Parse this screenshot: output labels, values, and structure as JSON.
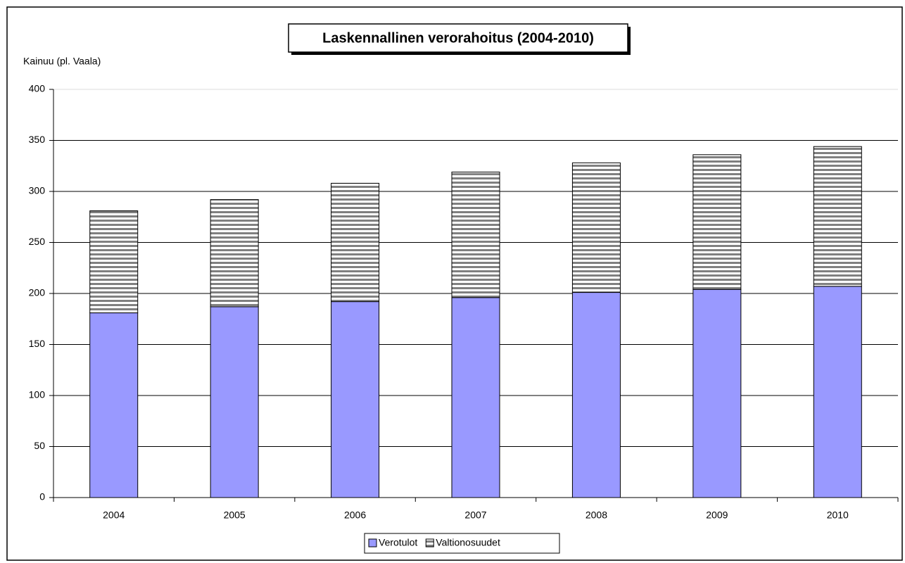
{
  "chart_data": {
    "type": "stacked_bar",
    "title": "Laskennallinen verorahoitus (2004-2010)",
    "y_label": "Kainuu (pl. Vaala)",
    "categories": [
      "2004",
      "2005",
      "2006",
      "2007",
      "2008",
      "2009",
      "2010"
    ],
    "series": [
      {
        "name": "Verotulot",
        "color": "#9999ff",
        "values": [
          181,
          187,
          192,
          196,
          201,
          204,
          207
        ]
      },
      {
        "name": "Valtionosuudet",
        "color": "#808080",
        "values": [
          100,
          105,
          116,
          123,
          127,
          132,
          137
        ]
      }
    ],
    "ylim": [
      0,
      400
    ],
    "yticks": [
      0,
      50,
      100,
      150,
      200,
      250,
      300,
      350,
      400
    ],
    "grid": true,
    "legend": "bottom"
  }
}
